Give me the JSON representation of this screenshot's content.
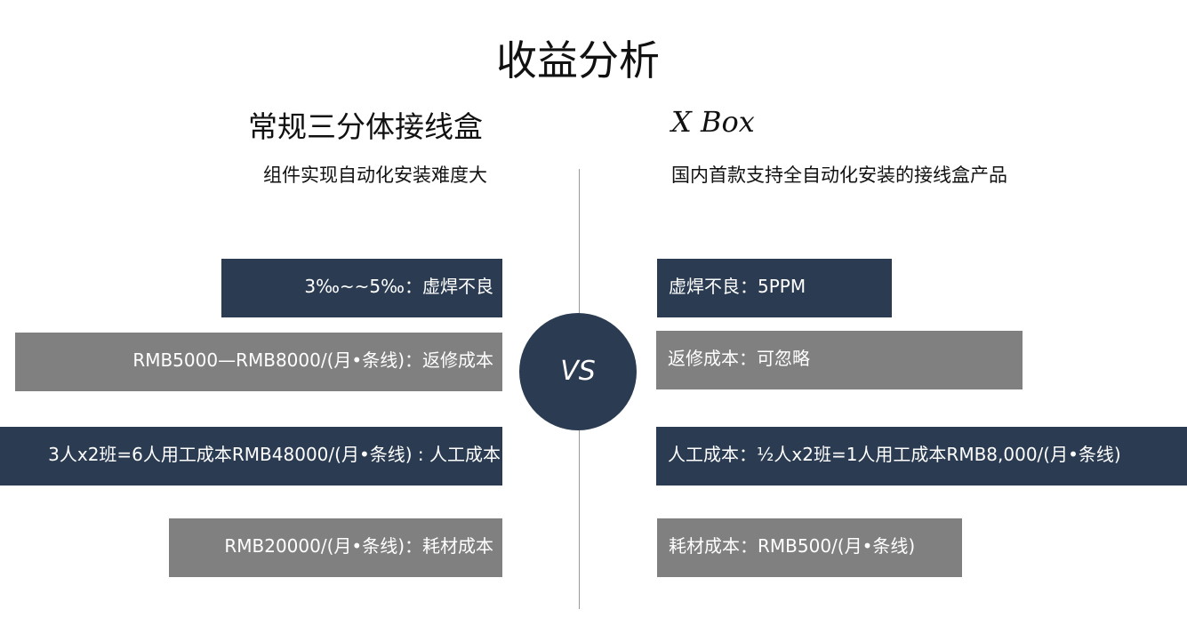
{
  "title": "收益分析",
  "left": {
    "heading": "常规三分体接线盒",
    "subtitle": "组件实现自动化安装难度大",
    "items": [
      "3‰~~5‰：虚焊不良",
      "RMB5000—RMB8000/(月•条线)：返修成本",
      "3人x2班=6人用工成本RMB48000/(月•条线) : 人工成本",
      "RMB20000/(月•条线)：耗材成本"
    ]
  },
  "center": {
    "label": "VS"
  },
  "right": {
    "heading": "X Box",
    "subtitle": "国内首款支持全自动化安装的接线盒产品",
    "items": [
      "虚焊不良：5PPM",
      "返修成本：可忽略",
      "人工成本：½人x2班=1人用工成本RMB8,000/(月•条线)",
      "耗材成本：RMB500/(月•条线)"
    ]
  }
}
